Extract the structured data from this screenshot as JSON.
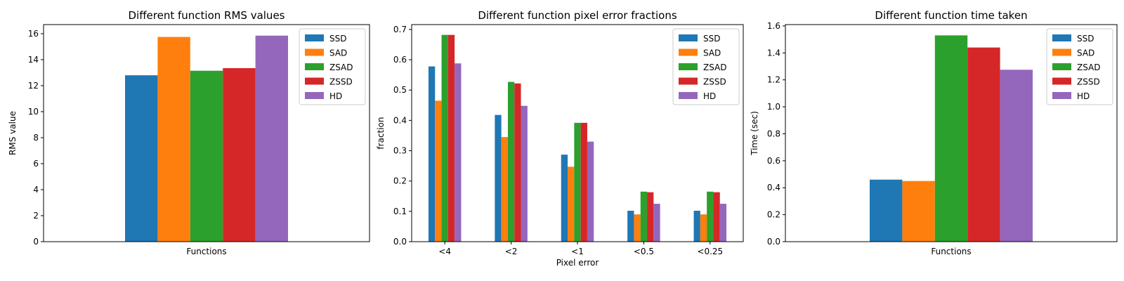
{
  "colors": [
    "#1f77b4",
    "#ff7f0e",
    "#2ca02c",
    "#d62728",
    "#9467bd"
  ],
  "chart_data": [
    {
      "type": "bar",
      "title": "Different function RMS values",
      "xlabel": "Functions",
      "ylabel": "RMS value",
      "categories": [
        ""
      ],
      "series": [
        {
          "name": "SSD",
          "values": [
            12.8
          ]
        },
        {
          "name": "SAD",
          "values": [
            15.75
          ]
        },
        {
          "name": "ZSAD",
          "values": [
            13.15
          ]
        },
        {
          "name": "ZSSD",
          "values": [
            13.35
          ]
        },
        {
          "name": "HD",
          "values": [
            15.85
          ]
        }
      ],
      "ylim": [
        0,
        16.7
      ],
      "yticks": [
        "0",
        "2",
        "4",
        "6",
        "8",
        "10",
        "12",
        "14",
        "16"
      ],
      "legend": "top-right",
      "grid": false
    },
    {
      "type": "bar",
      "title": "Different function pixel error fractions",
      "xlabel": "Pixel error",
      "ylabel": "fraction",
      "categories": [
        "<4",
        "<2",
        "<1",
        "<0.5",
        "<0.25"
      ],
      "series": [
        {
          "name": "SSD",
          "values": [
            0.578,
            0.418,
            0.287,
            0.102,
            0.102
          ]
        },
        {
          "name": "SAD",
          "values": [
            0.465,
            0.345,
            0.247,
            0.09,
            0.09
          ]
        },
        {
          "name": "ZSAD",
          "values": [
            0.682,
            0.527,
            0.392,
            0.165,
            0.165
          ]
        },
        {
          "name": "ZSSD",
          "values": [
            0.682,
            0.522,
            0.392,
            0.163,
            0.163
          ]
        },
        {
          "name": "HD",
          "values": [
            0.588,
            0.448,
            0.33,
            0.125,
            0.125
          ]
        }
      ],
      "ylim": [
        0,
        0.716
      ],
      "yticks": [
        "0.0",
        "0.1",
        "0.2",
        "0.3",
        "0.4",
        "0.5",
        "0.6",
        "0.7"
      ],
      "legend": "top-right",
      "grid": false
    },
    {
      "type": "bar",
      "title": "Different function time taken",
      "xlabel": "Functions",
      "ylabel": "Time (sec)",
      "categories": [
        ""
      ],
      "series": [
        {
          "name": "SSD",
          "values": [
            0.46
          ]
        },
        {
          "name": "SAD",
          "values": [
            0.45
          ]
        },
        {
          "name": "ZSAD",
          "values": [
            1.53
          ]
        },
        {
          "name": "ZSSD",
          "values": [
            1.44
          ]
        },
        {
          "name": "HD",
          "values": [
            1.275
          ]
        }
      ],
      "ylim": [
        0,
        1.61
      ],
      "yticks": [
        "0.0",
        "0.2",
        "0.4",
        "0.6",
        "0.8",
        "1.0",
        "1.2",
        "1.4",
        "1.6"
      ],
      "legend": "top-right",
      "grid": false
    }
  ]
}
